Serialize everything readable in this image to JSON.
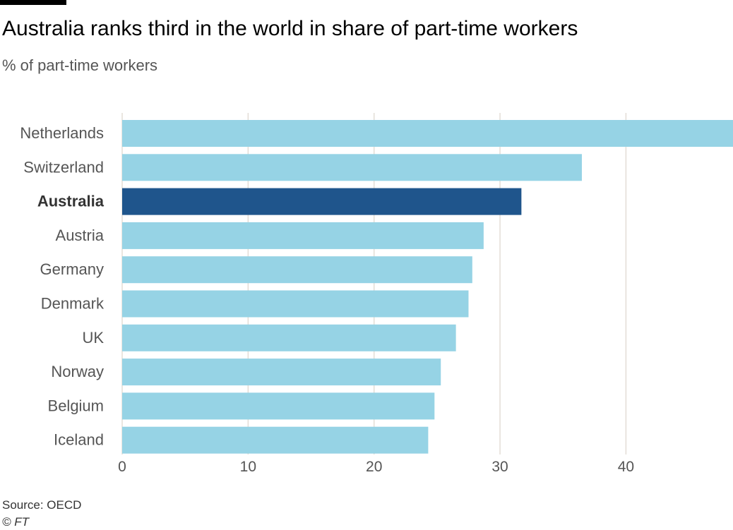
{
  "header": {
    "title": "Australia ranks third in the world in share of part-time workers",
    "subtitle": "% of part-time workers"
  },
  "footer": {
    "source": "Source: OECD",
    "credit": "© FT"
  },
  "colors": {
    "bar": "#96d3e5",
    "highlight": "#1f558c",
    "grid": "#e3ddd6",
    "tick_text": "#555555",
    "label_text": "#555555"
  },
  "chart_data": {
    "type": "bar",
    "orientation": "horizontal",
    "title": "Australia ranks third in the world in share of part-time workers",
    "subtitle": "% of part-time workers",
    "categories": [
      "Netherlands",
      "Switzerland",
      "Australia",
      "Austria",
      "Germany",
      "Denmark",
      "UK",
      "Norway",
      "Belgium",
      "Iceland"
    ],
    "values": [
      48.5,
      36.5,
      31.7,
      28.7,
      27.8,
      27.5,
      26.5,
      25.3,
      24.8,
      24.3
    ],
    "highlight": "Australia",
    "xlim": [
      0,
      48.5
    ],
    "xticks": [
      0,
      10,
      20,
      30,
      40
    ],
    "grid": true,
    "source": "Source: OECD"
  }
}
